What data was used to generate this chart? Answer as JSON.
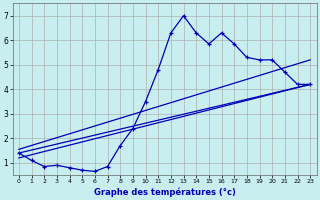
{
  "xlabel": "Graphe des températures (°c)",
  "bg_color": "#c8eef0",
  "grid_color": "#b0b0b0",
  "line_color": "#0000bb",
  "xlim": [
    -0.5,
    23.5
  ],
  "ylim": [
    0.5,
    7.5
  ],
  "yticks": [
    1,
    2,
    3,
    4,
    5,
    6,
    7
  ],
  "xticks": [
    0,
    1,
    2,
    3,
    4,
    5,
    6,
    7,
    8,
    9,
    10,
    11,
    12,
    13,
    14,
    15,
    16,
    17,
    18,
    19,
    20,
    21,
    22,
    23
  ],
  "hours": [
    0,
    1,
    2,
    3,
    4,
    5,
    6,
    7,
    8,
    9,
    10,
    11,
    12,
    13,
    14,
    15,
    16,
    17,
    18,
    19,
    20,
    21,
    22,
    23
  ],
  "temps": [
    1.4,
    1.1,
    0.85,
    0.9,
    0.8,
    0.7,
    0.65,
    0.85,
    1.7,
    2.4,
    3.5,
    4.8,
    6.3,
    7.0,
    6.3,
    5.85,
    6.3,
    5.85,
    5.3,
    5.2,
    5.2,
    4.7,
    4.2,
    4.2
  ],
  "trend1_x": [
    0,
    23
  ],
  "trend1_y": [
    1.4,
    4.2
  ],
  "trend2_x": [
    0,
    23
  ],
  "trend2_y": [
    1.2,
    4.2
  ],
  "trend3_x": [
    0,
    23
  ],
  "trend3_y": [
    1.55,
    5.2
  ]
}
